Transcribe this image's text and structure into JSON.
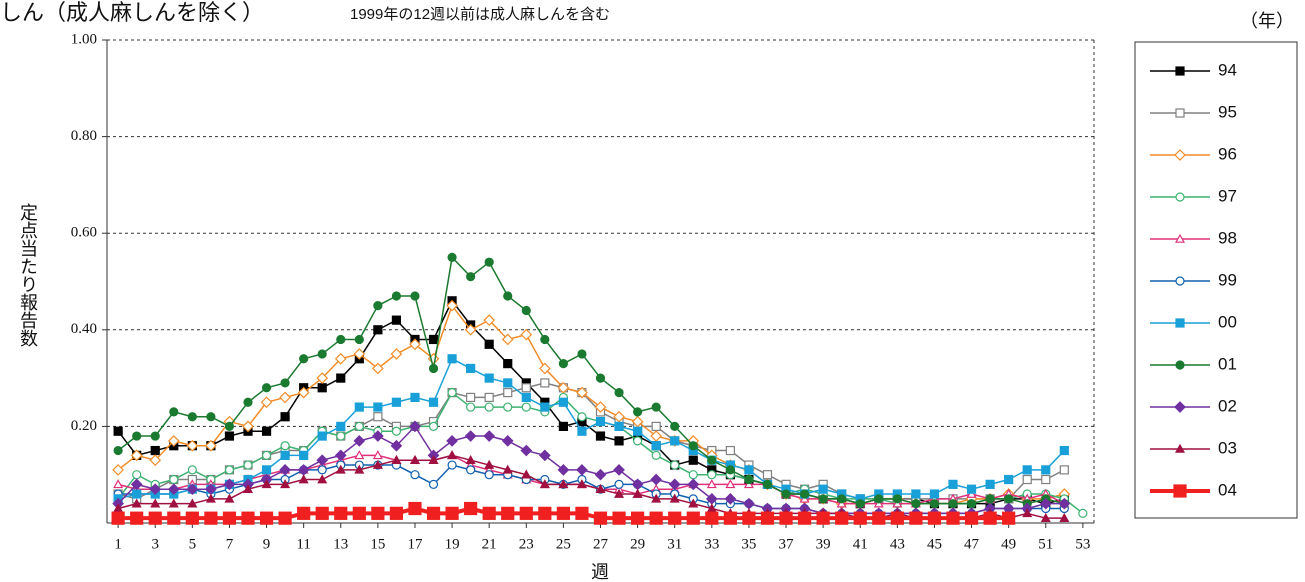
{
  "chart_data": {
    "type": "line",
    "title": "しん（成人麻しんを除く）",
    "subtitle": "1999年の12週以前は成人麻しんを含む",
    "y_label": "定点当たり報告数",
    "x_label": "週",
    "legend_title": "（年）",
    "legend": "right",
    "grid": true,
    "xlim": [
      0.4,
      53.6
    ],
    "xticks": [
      1,
      3,
      5,
      7,
      9,
      11,
      13,
      15,
      17,
      19,
      21,
      23,
      25,
      27,
      29,
      31,
      33,
      35,
      37,
      39,
      41,
      43,
      45,
      47,
      49,
      51,
      53
    ],
    "ylim": [
      0,
      1
    ],
    "yticks": [
      {
        "value": 0.2,
        "label": "0.20"
      },
      {
        "value": 0.4,
        "label": "0.40"
      },
      {
        "value": 0.6,
        "label": "0.60"
      },
      {
        "value": 0.8,
        "label": "0.80"
      },
      {
        "value": 1,
        "label": "1.00"
      }
    ],
    "x": [
      1,
      2,
      3,
      4,
      5,
      6,
      7,
      8,
      9,
      10,
      11,
      12,
      13,
      14,
      15,
      16,
      17,
      18,
      19,
      20,
      21,
      22,
      23,
      24,
      25,
      26,
      27,
      28,
      29,
      30,
      31,
      32,
      33,
      34,
      35,
      36,
      37,
      38,
      39,
      40,
      41,
      42,
      43,
      44,
      45,
      46,
      47,
      48,
      49,
      50,
      51,
      52,
      53
    ],
    "series": [
      {
        "name": "94",
        "color": "#000000",
        "marker": "square",
        "line_width": 1.5,
        "values": [
          0.19,
          0.14,
          0.15,
          0.16,
          0.16,
          0.16,
          0.18,
          0.19,
          0.19,
          0.22,
          0.28,
          0.28,
          0.3,
          0.34,
          0.4,
          0.42,
          0.38,
          0.38,
          0.46,
          0.41,
          0.37,
          0.33,
          0.29,
          0.25,
          0.2,
          0.21,
          0.18,
          0.17,
          0.18,
          0.16,
          0.12,
          0.13,
          0.11,
          0.1,
          0.09,
          0.08,
          0.06,
          0.06,
          0.05,
          0.05,
          0.04,
          0.05,
          0.05,
          0.05,
          0.04,
          0.04,
          0.04,
          0.04,
          0.05,
          0.05,
          0.04,
          0.05,
          null
        ]
      },
      {
        "name": "95",
        "color": "#808080",
        "marker": "square-open",
        "line_width": 1.5,
        "values": [
          0.06,
          0.05,
          0.07,
          0.09,
          0.09,
          0.09,
          0.11,
          0.12,
          0.14,
          0.15,
          0.15,
          0.19,
          0.18,
          0.2,
          0.22,
          0.2,
          0.2,
          0.21,
          0.27,
          0.26,
          0.26,
          0.27,
          0.28,
          0.29,
          0.28,
          0.27,
          0.23,
          0.21,
          0.2,
          0.2,
          0.17,
          0.16,
          0.15,
          0.15,
          0.12,
          0.1,
          0.08,
          0.07,
          0.08,
          0.06,
          0.05,
          0.05,
          0.05,
          0.05,
          0.05,
          0.05,
          0.05,
          0.05,
          0.05,
          0.09,
          0.09,
          0.11,
          null
        ]
      },
      {
        "name": "96",
        "color": "#f28c28",
        "marker": "diamond-open",
        "line_width": 1.5,
        "values": [
          0.11,
          0.14,
          0.13,
          0.17,
          0.16,
          0.16,
          0.21,
          0.2,
          0.25,
          0.26,
          0.27,
          0.3,
          0.34,
          0.35,
          0.32,
          0.35,
          0.37,
          0.34,
          0.45,
          0.4,
          0.42,
          0.38,
          0.39,
          0.32,
          0.28,
          0.27,
          0.24,
          0.22,
          0.21,
          0.18,
          0.17,
          0.17,
          0.14,
          0.12,
          0.11,
          0.08,
          0.06,
          0.05,
          0.05,
          0.04,
          0.04,
          0.05,
          0.05,
          0.04,
          0.04,
          0.04,
          0.05,
          0.05,
          0.06,
          0.05,
          0.05,
          0.06,
          null
        ]
      },
      {
        "name": "97",
        "color": "#3cb371",
        "marker": "circle-open",
        "line_width": 1.5,
        "values": [
          0.05,
          0.1,
          0.08,
          0.09,
          0.11,
          0.09,
          0.11,
          0.12,
          0.14,
          0.16,
          0.15,
          0.19,
          0.18,
          0.2,
          0.19,
          0.19,
          0.2,
          0.2,
          0.27,
          0.24,
          0.24,
          0.24,
          0.24,
          0.23,
          0.26,
          0.22,
          0.21,
          0.2,
          0.17,
          0.14,
          0.12,
          0.1,
          0.1,
          0.1,
          0.09,
          0.08,
          0.06,
          0.07,
          0.06,
          0.05,
          0.05,
          0.05,
          0.04,
          0.04,
          0.04,
          0.04,
          0.04,
          0.05,
          0.05,
          0.06,
          0.06,
          0.05,
          0.02
        ]
      },
      {
        "name": "98",
        "color": "#e0307a",
        "marker": "triangle-open",
        "line_width": 1.5,
        "values": [
          0.08,
          0.07,
          0.07,
          0.07,
          0.08,
          0.08,
          0.08,
          0.09,
          0.1,
          0.11,
          0.11,
          0.12,
          0.13,
          0.14,
          0.14,
          0.13,
          0.13,
          0.13,
          0.14,
          0.12,
          0.11,
          0.1,
          0.09,
          0.08,
          0.08,
          0.08,
          0.07,
          0.07,
          0.06,
          0.07,
          0.07,
          0.08,
          0.08,
          0.08,
          0.08,
          0.08,
          0.06,
          0.05,
          0.05,
          0.04,
          0.04,
          0.04,
          0.04,
          0.04,
          0.05,
          0.05,
          0.06,
          0.05,
          0.06,
          0.05,
          0.06,
          0.04,
          null
        ]
      },
      {
        "name": "99",
        "color": "#1060b0",
        "marker": "circle-open",
        "line_width": 1.5,
        "values": [
          0.06,
          0.06,
          0.06,
          0.06,
          0.07,
          0.06,
          0.07,
          0.08,
          0.09,
          0.09,
          0.11,
          0.11,
          0.12,
          0.12,
          0.12,
          0.12,
          0.1,
          0.08,
          0.12,
          0.11,
          0.1,
          0.1,
          0.09,
          0.09,
          0.08,
          0.09,
          0.07,
          0.08,
          0.08,
          0.06,
          0.06,
          0.05,
          0.04,
          0.04,
          0.04,
          0.03,
          0.03,
          0.03,
          0.02,
          0.02,
          0.02,
          0.02,
          0.02,
          0.02,
          0.02,
          0.02,
          0.02,
          0.03,
          0.03,
          0.03,
          0.03,
          0.03,
          null
        ]
      },
      {
        "name": "00",
        "color": "#1aa0d8",
        "marker": "square",
        "line_width": 1.5,
        "values": [
          0.05,
          0.06,
          0.06,
          0.06,
          0.07,
          0.07,
          0.08,
          0.09,
          0.11,
          0.14,
          0.14,
          0.18,
          0.2,
          0.24,
          0.24,
          0.25,
          0.26,
          0.25,
          0.34,
          0.32,
          0.3,
          0.29,
          0.26,
          0.24,
          0.25,
          0.19,
          0.21,
          0.2,
          0.19,
          0.16,
          0.17,
          0.15,
          0.13,
          0.12,
          0.11,
          0.08,
          0.07,
          0.06,
          0.07,
          0.06,
          0.05,
          0.06,
          0.06,
          0.06,
          0.06,
          0.08,
          0.07,
          0.08,
          0.09,
          0.11,
          0.11,
          0.15,
          null
        ]
      },
      {
        "name": "01",
        "color": "#1a7a30",
        "marker": "circle",
        "line_width": 1.5,
        "values": [
          0.15,
          0.18,
          0.18,
          0.23,
          0.22,
          0.22,
          0.2,
          0.25,
          0.28,
          0.29,
          0.34,
          0.35,
          0.38,
          0.38,
          0.45,
          0.47,
          0.47,
          0.32,
          0.55,
          0.51,
          0.54,
          0.47,
          0.44,
          0.38,
          0.33,
          0.35,
          0.3,
          0.27,
          0.23,
          0.24,
          0.2,
          0.16,
          0.13,
          0.11,
          0.09,
          0.08,
          0.06,
          0.06,
          0.05,
          0.05,
          0.04,
          0.05,
          0.05,
          0.04,
          0.04,
          0.04,
          0.04,
          0.05,
          0.05,
          0.04,
          0.05,
          0.04,
          null
        ]
      },
      {
        "name": "02",
        "color": "#7030a0",
        "marker": "diamond",
        "line_width": 1.5,
        "values": [
          0.04,
          0.08,
          0.07,
          0.07,
          0.07,
          0.07,
          0.08,
          0.08,
          0.09,
          0.11,
          0.11,
          0.13,
          0.14,
          0.17,
          0.18,
          0.16,
          0.2,
          0.14,
          0.17,
          0.18,
          0.18,
          0.17,
          0.15,
          0.14,
          0.11,
          0.11,
          0.1,
          0.11,
          0.08,
          0.09,
          0.08,
          0.08,
          0.05,
          0.05,
          0.04,
          0.03,
          0.03,
          0.03,
          0.02,
          0.02,
          0.02,
          0.02,
          0.02,
          0.02,
          0.02,
          0.02,
          0.02,
          0.03,
          0.03,
          0.03,
          0.04,
          0.04,
          null
        ]
      },
      {
        "name": "03",
        "color": "#a01040",
        "marker": "triangle",
        "line_width": 1.5,
        "values": [
          0.03,
          0.04,
          0.04,
          0.04,
          0.04,
          0.05,
          0.05,
          0.07,
          0.08,
          0.08,
          0.09,
          0.09,
          0.11,
          0.11,
          0.12,
          0.13,
          0.13,
          0.13,
          0.14,
          0.13,
          0.12,
          0.11,
          0.1,
          0.08,
          0.08,
          0.08,
          0.07,
          0.06,
          0.06,
          0.05,
          0.05,
          0.04,
          0.03,
          0.02,
          0.02,
          0.02,
          0.02,
          0.02,
          0.02,
          0.02,
          0.01,
          0.01,
          0.02,
          0.01,
          0.01,
          0.01,
          0.01,
          0.02,
          0.01,
          0.02,
          0.01,
          0.01,
          null
        ]
      },
      {
        "name": "04",
        "color": "#f02020",
        "marker": "square",
        "line_width": 4,
        "values": [
          0.01,
          0.01,
          0.01,
          0.01,
          0.01,
          0.01,
          0.01,
          0.01,
          0.01,
          0.01,
          0.02,
          0.02,
          0.02,
          0.02,
          0.02,
          0.02,
          0.03,
          0.02,
          0.02,
          0.03,
          0.02,
          0.02,
          0.02,
          0.02,
          0.02,
          0.02,
          0.01,
          0.01,
          0.01,
          0.01,
          0.01,
          0.01,
          0.01,
          0.01,
          0.01,
          0.01,
          0.01,
          0.01,
          0.01,
          0.01,
          0.01,
          0.01,
          0.01,
          0.01,
          0.01,
          0.01,
          0.01,
          0.01,
          0.01,
          null,
          null,
          null,
          null
        ]
      }
    ]
  }
}
